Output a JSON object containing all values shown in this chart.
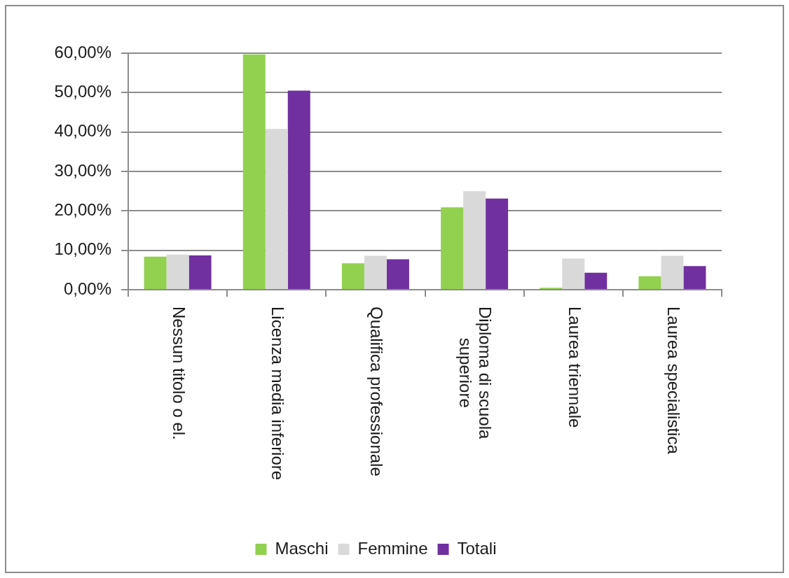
{
  "chart_data": {
    "type": "bar",
    "categories": [
      "Nessun titolo o el.",
      "Licenza media inferiore",
      "Qualifica professionale",
      "Diploma di scuola superiore",
      "Laurea triennale",
      "Laurea specialistica"
    ],
    "series": [
      {
        "name": "Maschi",
        "color": "#92d050",
        "values": [
          8.4,
          59.7,
          6.7,
          20.9,
          0.5,
          3.4
        ]
      },
      {
        "name": "Femmine",
        "color": "#d9d9d9",
        "values": [
          8.9,
          40.8,
          8.6,
          25.0,
          7.9,
          8.6
        ]
      },
      {
        "name": "Totali",
        "color": "#7030a0",
        "values": [
          8.7,
          50.5,
          7.7,
          23.1,
          4.3,
          6.0
        ]
      }
    ],
    "ylim": [
      0,
      60
    ],
    "yticks": [
      {
        "value": 0,
        "label": "0,00%"
      },
      {
        "value": 10,
        "label": "10,00%"
      },
      {
        "value": 20,
        "label": "20,00%"
      },
      {
        "value": 30,
        "label": "30,00%"
      },
      {
        "value": 40,
        "label": "40,00%"
      },
      {
        "value": 50,
        "label": "50,00%"
      },
      {
        "value": 60,
        "label": "60,00%"
      }
    ],
    "grid": "y",
    "legend": "bottom"
  }
}
